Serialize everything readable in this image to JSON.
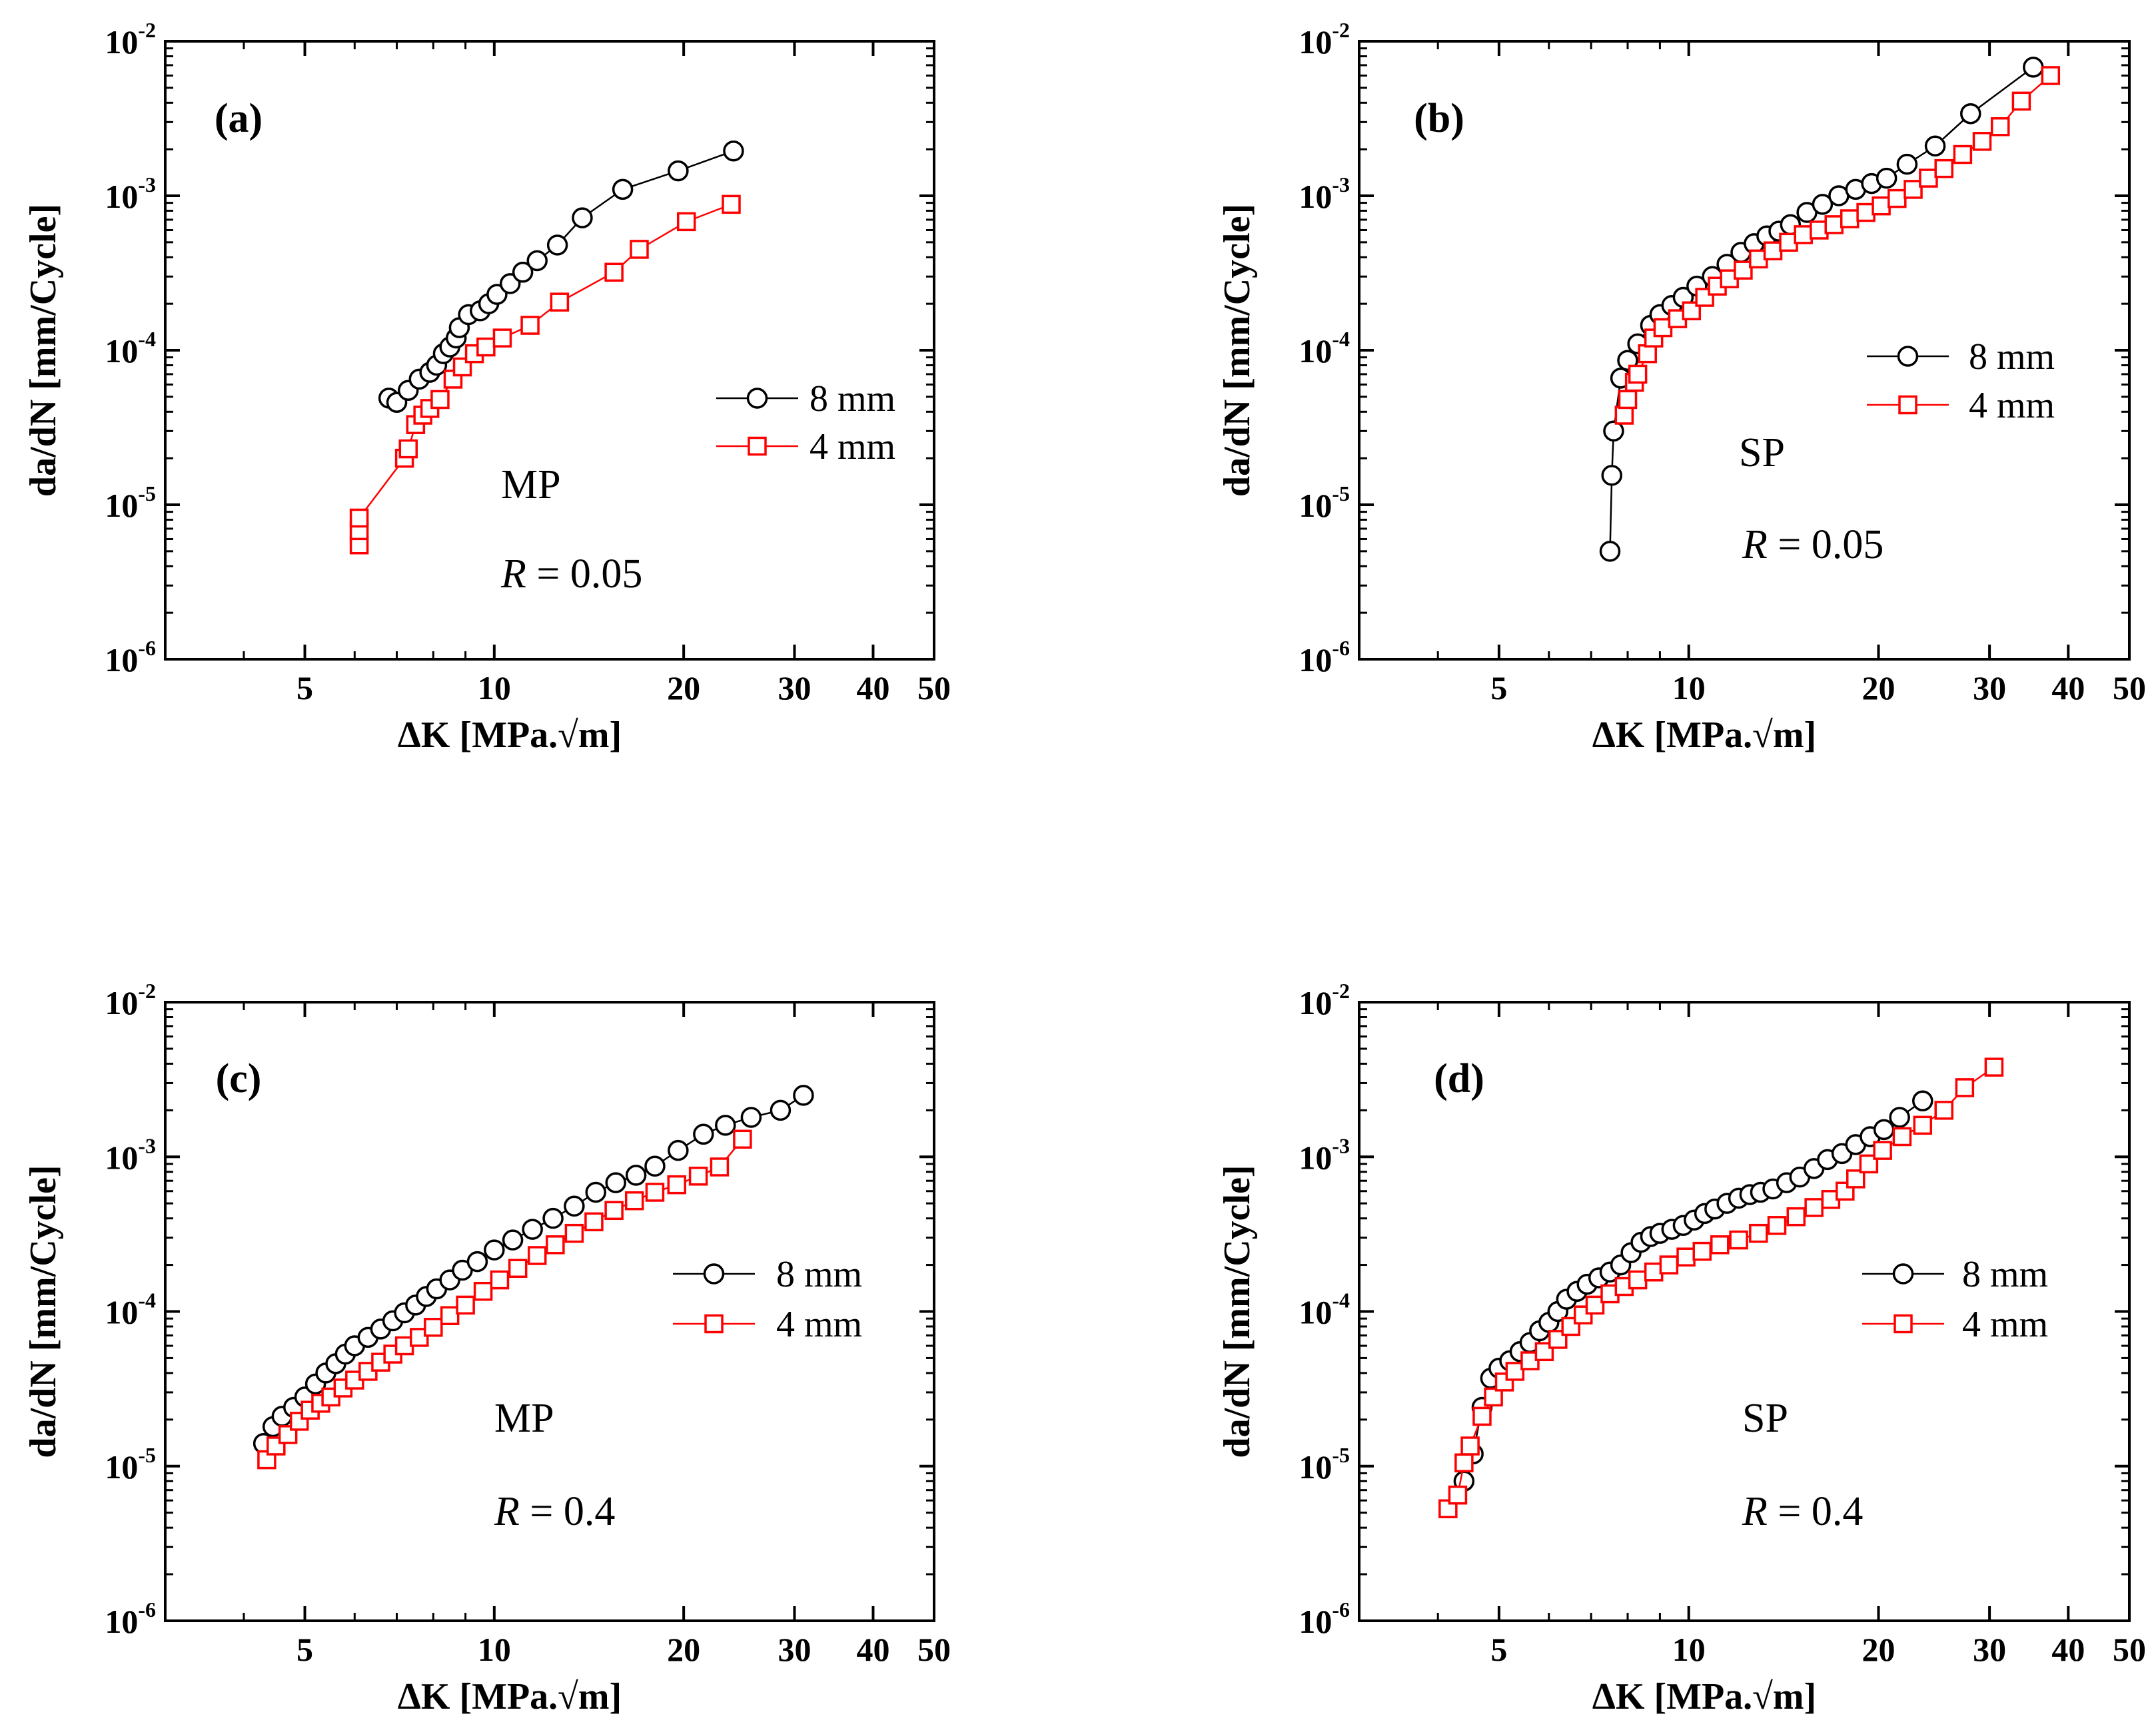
{
  "chart_data": [
    {
      "type": "scatter",
      "panel_label": "(a)",
      "material": "MP",
      "ratio_label": "R",
      "ratio_value": "= 0.05",
      "xlabel": "ΔK [MPa.√m]",
      "ylabel": "da/dN [mm/Cycle]",
      "xscale": "log",
      "yscale": "log",
      "xlim": [
        3,
        50
      ],
      "ylim": [
        1e-06,
        0.01
      ],
      "xticks": [
        5,
        10,
        20,
        30,
        40,
        50
      ],
      "yticks": [
        {
          "value": 1e-06,
          "base": "10",
          "exp": "-6"
        },
        {
          "value": 1e-05,
          "base": "10",
          "exp": "-5"
        },
        {
          "value": 0.0001,
          "base": "10",
          "exp": "-4"
        },
        {
          "value": 0.001,
          "base": "10",
          "exp": "-3"
        },
        {
          "value": 0.01,
          "base": "10",
          "exp": "-2"
        }
      ],
      "legend_position": "center-right",
      "series": [
        {
          "name": "8 mm",
          "marker": "circle",
          "color": "#000000",
          "x": [
            6.8,
            7.0,
            7.3,
            7.6,
            7.9,
            8.1,
            8.3,
            8.5,
            8.7,
            8.8,
            9.1,
            9.5,
            9.8,
            10.1,
            10.6,
            11.1,
            11.7,
            12.6,
            13.8,
            16.0,
            19.6,
            24.0
          ],
          "y": [
            4.9e-05,
            4.6e-05,
            5.5e-05,
            6.5e-05,
            7.2e-05,
            8e-05,
            9.5e-05,
            0.000105,
            0.00012,
            0.00014,
            0.00017,
            0.00018,
            0.0002,
            0.00023,
            0.00027,
            0.00032,
            0.00038,
            0.00048,
            0.00072,
            0.0011,
            0.00145,
            0.00195
          ]
        },
        {
          "name": "4 mm",
          "marker": "square",
          "color": "#ff0000",
          "x": [
            6.1,
            6.1,
            6.1,
            7.2,
            7.3,
            7.5,
            7.7,
            7.9,
            8.2,
            8.6,
            8.9,
            9.3,
            9.7,
            10.3,
            11.4,
            12.7,
            15.5,
            17.0,
            20.2,
            23.8
          ],
          "y": [
            5.5e-06,
            6.8e-06,
            8.2e-06,
            2e-05,
            2.3e-05,
            3.3e-05,
            3.8e-05,
            4.2e-05,
            4.8e-05,
            6.5e-05,
            7.8e-05,
            9.5e-05,
            0.000105,
            0.00012,
            0.000145,
            0.000205,
            0.00032,
            0.00045,
            0.00068,
            0.00088
          ]
        }
      ]
    },
    {
      "type": "scatter",
      "panel_label": "(b)",
      "material": "SP",
      "ratio_label": "R",
      "ratio_value": "= 0.05",
      "xlabel": "ΔK [MPa.√m]",
      "ylabel": "da/dN [mm/Cycle]",
      "xscale": "log",
      "yscale": "log",
      "xlim": [
        3,
        50
      ],
      "ylim": [
        1e-06,
        0.01
      ],
      "xticks": [
        5,
        10,
        20,
        30,
        40,
        50
      ],
      "yticks": [
        {
          "value": 1e-06,
          "base": "10",
          "exp": "-6"
        },
        {
          "value": 1e-05,
          "base": "10",
          "exp": "-5"
        },
        {
          "value": 0.0001,
          "base": "10",
          "exp": "-4"
        },
        {
          "value": 0.001,
          "base": "10",
          "exp": "-3"
        },
        {
          "value": 0.01,
          "base": "10",
          "exp": "-2"
        }
      ],
      "legend_position": "top-right",
      "series": [
        {
          "name": "8 mm",
          "marker": "circle",
          "color": "#000000",
          "x": [
            7.5,
            7.55,
            7.6,
            7.8,
            8.0,
            8.3,
            8.7,
            9.0,
            9.4,
            9.8,
            10.3,
            10.9,
            11.5,
            12.1,
            12.7,
            13.3,
            13.9,
            14.5,
            15.4,
            16.3,
            17.3,
            18.4,
            19.5,
            20.6,
            22.2,
            24.6,
            28.0,
            35.2
          ],
          "y": [
            5e-06,
            1.55e-05,
            3e-05,
            6.6e-05,
            8.6e-05,
            0.00011,
            0.000145,
            0.00017,
            0.000195,
            0.00022,
            0.00026,
            0.0003,
            0.00036,
            0.00043,
            0.00049,
            0.00055,
            0.00059,
            0.00065,
            0.00078,
            0.00088,
            0.001,
            0.0011,
            0.0012,
            0.0013,
            0.0016,
            0.0021,
            0.0034,
            0.0068
          ]
        },
        {
          "name": "4 mm",
          "marker": "square",
          "color": "#ff0000",
          "x": [
            7.9,
            8.0,
            8.2,
            8.3,
            8.6,
            8.8,
            9.1,
            9.6,
            10.1,
            10.6,
            11.1,
            11.6,
            12.2,
            12.9,
            13.6,
            14.4,
            15.2,
            16.1,
            17.0,
            18.0,
            19.1,
            20.2,
            21.4,
            22.7,
            24.0,
            25.4,
            27.2,
            29.2,
            31.2,
            33.7,
            37.5
          ],
          "y": [
            3.8e-05,
            4.8e-05,
            6.2e-05,
            7e-05,
            9.5e-05,
            0.00012,
            0.00014,
            0.00016,
            0.00018,
            0.00022,
            0.00026,
            0.00029,
            0.00033,
            0.00039,
            0.00044,
            0.0005,
            0.00056,
            0.0006,
            0.00065,
            0.00071,
            0.00078,
            0.00086,
            0.00096,
            0.0011,
            0.0013,
            0.0015,
            0.00185,
            0.00225,
            0.0028,
            0.0041,
            0.006
          ]
        }
      ]
    },
    {
      "type": "scatter",
      "panel_label": "(c)",
      "material": "MP",
      "ratio_label": "R",
      "ratio_value": "= 0.4",
      "xlabel": "ΔK [MPa.√m]",
      "ylabel": "da/dN [mm/Cycle]",
      "xscale": "log",
      "yscale": "log",
      "xlim": [
        3,
        50
      ],
      "ylim": [
        1e-06,
        0.01
      ],
      "xticks": [
        5,
        10,
        20,
        30,
        40,
        50
      ],
      "yticks": [
        {
          "value": 1e-06,
          "base": "10",
          "exp": "-6"
        },
        {
          "value": 1e-05,
          "base": "10",
          "exp": "-5"
        },
        {
          "value": 0.0001,
          "base": "10",
          "exp": "-4"
        },
        {
          "value": 0.001,
          "base": "10",
          "exp": "-3"
        },
        {
          "value": 0.01,
          "base": "10",
          "exp": "-2"
        }
      ],
      "legend_position": "center-right",
      "series": [
        {
          "name": "8 mm",
          "marker": "circle",
          "color": "#000000",
          "x": [
            4.3,
            4.45,
            4.6,
            4.8,
            5.0,
            5.2,
            5.4,
            5.6,
            5.8,
            6.0,
            6.3,
            6.6,
            6.9,
            7.2,
            7.5,
            7.8,
            8.1,
            8.5,
            8.9,
            9.4,
            10.0,
            10.7,
            11.5,
            12.4,
            13.4,
            14.5,
            15.6,
            16.8,
            18.0,
            19.6,
            21.5,
            23.3,
            25.6,
            28.5,
            31.0
          ],
          "y": [
            1.4e-05,
            1.8e-05,
            2.1e-05,
            2.4e-05,
            2.8e-05,
            3.4e-05,
            4e-05,
            4.6e-05,
            5.3e-05,
            6e-05,
            6.8e-05,
            7.7e-05,
            8.7e-05,
            9.8e-05,
            0.00011,
            0.000125,
            0.00014,
            0.00016,
            0.000185,
            0.00021,
            0.00025,
            0.00029,
            0.00034,
            0.0004,
            0.00048,
            0.00059,
            0.00068,
            0.00076,
            0.00087,
            0.0011,
            0.0014,
            0.0016,
            0.0018,
            0.002,
            0.0025
          ]
        },
        {
          "name": "4 mm",
          "marker": "square",
          "color": "#ff0000",
          "x": [
            4.35,
            4.5,
            4.7,
            4.9,
            5.1,
            5.3,
            5.5,
            5.75,
            6.0,
            6.3,
            6.6,
            6.9,
            7.2,
            7.6,
            8.0,
            8.5,
            9.0,
            9.6,
            10.2,
            10.9,
            11.7,
            12.5,
            13.4,
            14.4,
            15.5,
            16.7,
            18.0,
            19.5,
            21.1,
            22.8,
            24.8
          ],
          "y": [
            1.1e-05,
            1.35e-05,
            1.6e-05,
            1.95e-05,
            2.3e-05,
            2.55e-05,
            2.8e-05,
            3.2e-05,
            3.6e-05,
            4.1e-05,
            4.7e-05,
            5.3e-05,
            6e-05,
            6.8e-05,
            7.9e-05,
            9.4e-05,
            0.00011,
            0.000135,
            0.00016,
            0.00019,
            0.00023,
            0.00027,
            0.00032,
            0.00038,
            0.00045,
            0.00052,
            0.00059,
            0.00066,
            0.00075,
            0.00086,
            0.0013
          ]
        }
      ]
    },
    {
      "type": "scatter",
      "panel_label": "(d)",
      "material": "SP",
      "ratio_label": "R",
      "ratio_value": "= 0.4",
      "xlabel": "ΔK [MPa.√m]",
      "ylabel": "da/dN [mm/Cycle]",
      "xscale": "log",
      "yscale": "log",
      "xlim": [
        3,
        50
      ],
      "ylim": [
        1e-06,
        0.01
      ],
      "xticks": [
        5,
        10,
        20,
        30,
        40,
        50
      ],
      "yticks": [
        {
          "value": 1e-06,
          "base": "10",
          "exp": "-6"
        },
        {
          "value": 1e-05,
          "base": "10",
          "exp": "-5"
        },
        {
          "value": 0.0001,
          "base": "10",
          "exp": "-4"
        },
        {
          "value": 0.001,
          "base": "10",
          "exp": "-3"
        },
        {
          "value": 0.01,
          "base": "10",
          "exp": "-2"
        }
      ],
      "legend_position": "center-right",
      "series": [
        {
          "name": "8 mm",
          "marker": "circle",
          "color": "#000000",
          "x": [
            4.4,
            4.55,
            4.7,
            4.85,
            5.0,
            5.2,
            5.4,
            5.6,
            5.8,
            6.0,
            6.2,
            6.4,
            6.65,
            6.9,
            7.2,
            7.5,
            7.8,
            8.1,
            8.4,
            8.7,
            9.0,
            9.4,
            9.8,
            10.2,
            10.6,
            11.0,
            11.5,
            12.0,
            12.5,
            13.0,
            13.6,
            14.3,
            15.0,
            15.8,
            16.6,
            17.5,
            18.4,
            19.4,
            20.4,
            21.6,
            23.5
          ],
          "y": [
            8e-06,
            1.2e-05,
            2.4e-05,
            3.7e-05,
            4.3e-05,
            4.8e-05,
            5.5e-05,
            6.3e-05,
            7.5e-05,
            8.5e-05,
            0.0001,
            0.00012,
            0.000135,
            0.00015,
            0.000165,
            0.00018,
            0.0002,
            0.00024,
            0.00028,
            0.000305,
            0.00032,
            0.00034,
            0.00036,
            0.00039,
            0.00043,
            0.00046,
            0.0005,
            0.00054,
            0.00057,
            0.00059,
            0.00062,
            0.00068,
            0.00074,
            0.00084,
            0.00096,
            0.00105,
            0.0012,
            0.00135,
            0.0015,
            0.0018,
            0.0023
          ]
        },
        {
          "name": "4 mm",
          "marker": "square",
          "color": "#ff0000",
          "x": [
            4.15,
            4.3,
            4.4,
            4.5,
            4.7,
            4.9,
            5.1,
            5.3,
            5.6,
            5.9,
            6.2,
            6.5,
            6.8,
            7.1,
            7.5,
            7.9,
            8.3,
            8.8,
            9.3,
            9.9,
            10.5,
            11.2,
            12.0,
            12.9,
            13.8,
            14.8,
            15.8,
            16.8,
            17.7,
            18.4,
            19.3,
            20.3,
            21.8,
            23.5,
            25.4,
            27.4,
            30.5
          ],
          "y": [
            5.3e-06,
            6.5e-06,
            1.05e-05,
            1.35e-05,
            2.1e-05,
            2.8e-05,
            3.5e-05,
            4.1e-05,
            4.8e-05,
            5.5e-05,
            6.6e-05,
            8e-05,
            9.5e-05,
            0.00011,
            0.00013,
            0.000145,
            0.00016,
            0.00018,
            0.0002,
            0.000225,
            0.000245,
            0.00027,
            0.00029,
            0.00032,
            0.00036,
            0.00041,
            0.00047,
            0.00053,
            0.0006,
            0.00072,
            0.0009,
            0.0011,
            0.00135,
            0.0016,
            0.002,
            0.0028,
            0.0038
          ]
        }
      ]
    }
  ]
}
